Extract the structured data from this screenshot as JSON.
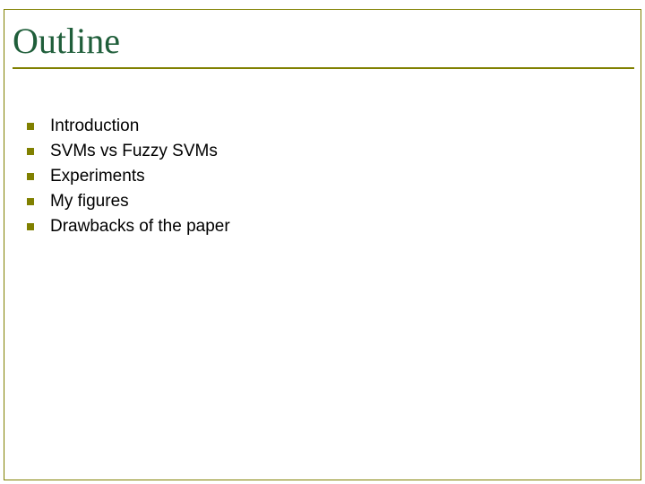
{
  "slide": {
    "title": "Outline",
    "title_color": "#1f5e3a",
    "title_fontsize": 40,
    "title_font": "Times New Roman",
    "underline_color": "#808000",
    "frame_color": "#808000",
    "background_color": "#ffffff",
    "bullet_color": "#808000",
    "bullet_size": 8,
    "item_fontsize": 19,
    "item_color": "#000000",
    "items": [
      "Introduction",
      "SVMs  vs  Fuzzy SVMs",
      "Experiments",
      "My figures",
      "Drawbacks of the paper"
    ]
  }
}
